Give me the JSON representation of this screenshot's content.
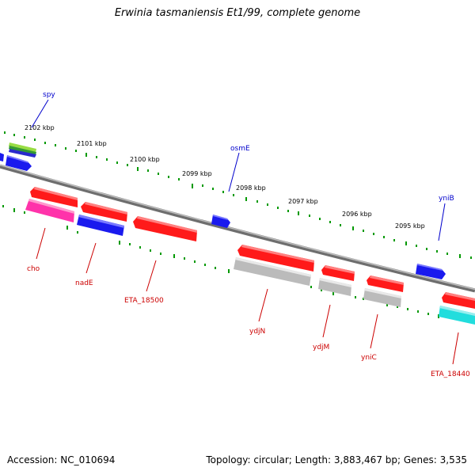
{
  "title": "Erwinia tasmaniensis Et1/99, complete genome",
  "footer": {
    "accession": "Accession: NC_010694",
    "summary": "Topology: circular; Length: 3,883,467 bp; Genes: 3,535"
  },
  "colors": {
    "backbone": "#808080",
    "tick": "#009900",
    "forward_label": "#0000cc",
    "reverse_label": "#cc0000",
    "red": "#ff1a1a",
    "blue": "#1a1aee",
    "gray": "#bbbbbb",
    "magenta": "#ff33aa",
    "cyan": "#22dddd",
    "lightgreen": "#99dd44",
    "darkgreen": "#339933"
  },
  "scale_labels": [
    "2102 kbp",
    "2101 kbp",
    "2100 kbp",
    "2099 kbp",
    "2098 kbp",
    "2097 kbp",
    "2096 kbp",
    "2095 kbp"
  ],
  "gene_labels": {
    "spy": "spy",
    "osmE": "osmE",
    "yniB": "yniB",
    "cho": "cho",
    "nadE": "nadE",
    "ETA_18500": "ETA_18500",
    "ydjN": "ydjN",
    "ydjM": "ydjM",
    "yniC": "yniC",
    "ETA_18440": "ETA_18440"
  }
}
